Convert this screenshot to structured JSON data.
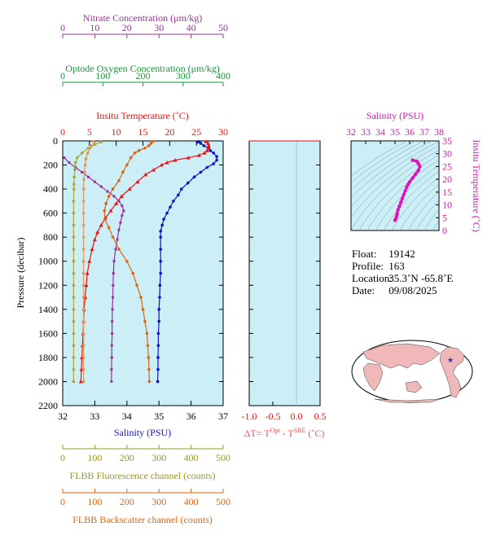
{
  "colors": {
    "nitrate": "#993399",
    "oxygen": "#119933",
    "temperature": "#ee1111",
    "salinity": "#1111cc",
    "fluorescence": "#aaaa33",
    "backscatter": "#dd6611",
    "panel_bg": "#cceef6",
    "ts_curve": "#dd11bb",
    "map_land": "#f0b8b8",
    "map_ocean": "#ffffff"
  },
  "labels": {
    "nitrate_axis": "Nitrate Concentration (μm/kg)",
    "oxygen_axis": "Optode Oxygen Concentration (μm/kg)",
    "temperature_axis": "Insitu Temperature (˚C)",
    "pressure_axis": "Pressure (decibar)",
    "salinity_axis": "Salinity (PSU)",
    "fluorescence_axis": "FLBB Fluorescence channel (counts)",
    "backscatter_axis": "FLBB Backscatter channel (counts)",
    "delta_t_axis": "ΔT= T",
    "delta_t_sup1": "Opt",
    "delta_t_mid": " - T",
    "delta_t_sup2": "SBE",
    "delta_t_unit": " (˚C)",
    "ts_salinity_axis": "Salinity (PSU)",
    "ts_temperature_axis": "Insitu Temperature (˚C)"
  },
  "info": {
    "float_label": "Float:",
    "float_value": "19142",
    "profile_label": "Profile:",
    "profile_value": "163",
    "location_label": "Location:",
    "location_value": "35.3˚N  -65.8˚E",
    "date_label": "Date:",
    "date_value": "09/08/2025"
  },
  "chart_data": [
    {
      "type": "line",
      "panel": "profiles",
      "y_axis": {
        "label": "Pressure (decibar)",
        "range": [
          2200,
          0
        ],
        "ticks": [
          0,
          200,
          400,
          600,
          800,
          1000,
          1200,
          1400,
          1600,
          1800,
          2000,
          2200
        ]
      },
      "x_axes": [
        {
          "name": "nitrate",
          "label": "Nitrate Concentration (μm/kg)",
          "range": [
            0,
            50
          ],
          "ticks": [
            0,
            10,
            20,
            30,
            40,
            50
          ]
        },
        {
          "name": "oxygen",
          "label": "Optode Oxygen Concentration (μm/kg)",
          "range": [
            0,
            400
          ],
          "ticks": [
            0,
            100,
            200,
            300,
            400
          ]
        },
        {
          "name": "temperature",
          "label": "Insitu Temperature (˚C)",
          "range": [
            0,
            30
          ],
          "ticks": [
            0,
            5,
            10,
            15,
            20,
            25,
            30
          ]
        },
        {
          "name": "salinity",
          "label": "Salinity (PSU)",
          "range": [
            32,
            37
          ],
          "ticks": [
            32,
            33,
            34,
            35,
            36,
            37
          ]
        },
        {
          "name": "fluorescence",
          "label": "FLBB Fluorescence channel (counts)",
          "range": [
            0,
            500
          ],
          "ticks": [
            0,
            100,
            200,
            300,
            400,
            500
          ]
        },
        {
          "name": "backscatter",
          "label": "FLBB Backscatter channel (counts)",
          "range": [
            0,
            500
          ],
          "ticks": [
            0,
            100,
            200,
            300,
            400,
            500
          ]
        }
      ],
      "series": [
        {
          "name": "salinity",
          "axis": "salinity",
          "points": [
            [
              36.25,
              5
            ],
            [
              36.2,
              10
            ],
            [
              36.3,
              20
            ],
            [
              36.4,
              40
            ],
            [
              36.55,
              60
            ],
            [
              36.6,
              80
            ],
            [
              36.7,
              100
            ],
            [
              36.8,
              130
            ],
            [
              36.8,
              160
            ],
            [
              36.7,
              190
            ],
            [
              36.5,
              220
            ],
            [
              36.3,
              260
            ],
            [
              36.1,
              300
            ],
            [
              35.9,
              350
            ],
            [
              35.7,
              400
            ],
            [
              35.6,
              450
            ],
            [
              35.45,
              500
            ],
            [
              35.35,
              550
            ],
            [
              35.25,
              600
            ],
            [
              35.15,
              650
            ],
            [
              35.1,
              700
            ],
            [
              35.05,
              750
            ],
            [
              35.05,
              800
            ],
            [
              35.05,
              900
            ],
            [
              35.05,
              1000
            ],
            [
              35.05,
              1100
            ],
            [
              35.03,
              1200
            ],
            [
              35.02,
              1300
            ],
            [
              35.0,
              1400
            ],
            [
              35.0,
              1500
            ],
            [
              34.98,
              1600
            ],
            [
              34.98,
              1700
            ],
            [
              34.97,
              1800
            ],
            [
              34.97,
              1900
            ],
            [
              34.96,
              2000
            ]
          ]
        },
        {
          "name": "temperature",
          "axis": "temperature",
          "points": [
            [
              26.8,
              5
            ],
            [
              27.2,
              20
            ],
            [
              27.3,
              40
            ],
            [
              27.2,
              60
            ],
            [
              27.0,
              80
            ],
            [
              26.5,
              100
            ],
            [
              25.5,
              120
            ],
            [
              23.5,
              140
            ],
            [
              21.0,
              160
            ],
            [
              19.5,
              180
            ],
            [
              18.5,
              200
            ],
            [
              17.0,
              240
            ],
            [
              15.5,
              280
            ],
            [
              14.0,
              340
            ],
            [
              12.5,
              400
            ],
            [
              11.0,
              460
            ],
            [
              10.0,
              520
            ],
            [
              9.0,
              580
            ],
            [
              8.0,
              640
            ],
            [
              7.2,
              700
            ],
            [
              6.5,
              760
            ],
            [
              6.0,
              820
            ],
            [
              5.5,
              900
            ],
            [
              5.0,
              1000
            ],
            [
              4.6,
              1100
            ],
            [
              4.4,
              1200
            ],
            [
              4.2,
              1300
            ],
            [
              4.0,
              1400
            ],
            [
              3.9,
              1500
            ],
            [
              3.8,
              1600
            ],
            [
              3.7,
              1700
            ],
            [
              3.6,
              1800
            ],
            [
              3.5,
              1900
            ],
            [
              3.4,
              2000
            ]
          ]
        },
        {
          "name": "nitrate",
          "axis": "nitrate",
          "points": [
            [
              0.5,
              140
            ],
            [
              2,
              180
            ],
            [
              4,
              220
            ],
            [
              6,
              260
            ],
            [
              8,
              300
            ],
            [
              10,
              340
            ],
            [
              12,
              380
            ],
            [
              14,
              420
            ],
            [
              16,
              460
            ],
            [
              17.5,
              500
            ],
            [
              18.5,
              540
            ],
            [
              19,
              580
            ],
            [
              18.5,
              620
            ],
            [
              18,
              680
            ],
            [
              17.5,
              740
            ],
            [
              17,
              820
            ],
            [
              16.5,
              900
            ],
            [
              16,
              1000
            ],
            [
              15.8,
              1100
            ],
            [
              15.7,
              1200
            ],
            [
              15.6,
              1300
            ],
            [
              15.5,
              1400
            ],
            [
              15.4,
              1500
            ],
            [
              15.4,
              1600
            ],
            [
              15.3,
              1700
            ],
            [
              15.3,
              1800
            ],
            [
              15.2,
              1900
            ],
            [
              15.2,
              2000
            ]
          ]
        },
        {
          "name": "oxygen",
          "axis": "oxygen",
          "points": [
            [
              225,
              5
            ],
            [
              220,
              20
            ],
            [
              215,
              40
            ],
            [
              205,
              60
            ],
            [
              190,
              80
            ],
            [
              180,
              100
            ],
            [
              170,
              140
            ],
            [
              160,
              200
            ],
            [
              150,
              260
            ],
            [
              140,
              330
            ],
            [
              125,
              400
            ],
            [
              115,
              460
            ],
            [
              108,
              520
            ],
            [
              104,
              580
            ],
            [
              105,
              650
            ],
            [
              115,
              720
            ],
            [
              125,
              800
            ],
            [
              140,
              900
            ],
            [
              160,
              1000
            ],
            [
              175,
              1100
            ],
            [
              185,
              1200
            ],
            [
              195,
              1300
            ],
            [
              200,
              1400
            ],
            [
              205,
              1500
            ],
            [
              210,
              1600
            ],
            [
              212,
              1700
            ],
            [
              214,
              1800
            ],
            [
              215,
              1900
            ],
            [
              216,
              2000
            ]
          ]
        },
        {
          "name": "fluorescence",
          "axis": "fluorescence",
          "points": [
            [
              120,
              10
            ],
            [
              100,
              30
            ],
            [
              80,
              60
            ],
            [
              60,
              100
            ],
            [
              45,
              140
            ],
            [
              40,
              180
            ],
            [
              38,
              240
            ],
            [
              36,
              300
            ],
            [
              35,
              360
            ],
            [
              35,
              400
            ],
            [
              34,
              500
            ],
            [
              34,
              600
            ],
            [
              34,
              700
            ],
            [
              34,
              800
            ],
            [
              34,
              900
            ],
            [
              34,
              1000
            ],
            [
              34,
              1100
            ],
            [
              34,
              1200
            ],
            [
              34,
              1300
            ],
            [
              34,
              1400
            ],
            [
              34,
              1500
            ],
            [
              34,
              1600
            ],
            [
              34,
              1700
            ],
            [
              34,
              1800
            ],
            [
              34,
              1900
            ],
            [
              34,
              2000
            ]
          ]
        },
        {
          "name": "backscatter",
          "axis": "backscatter",
          "points": [
            [
              95,
              5
            ],
            [
              100,
              20
            ],
            [
              90,
              40
            ],
            [
              85,
              60
            ],
            [
              78,
              100
            ],
            [
              72,
              150
            ],
            [
              70,
              200
            ],
            [
              68,
              260
            ],
            [
              66,
              320
            ],
            [
              65,
              400
            ],
            [
              65,
              500
            ],
            [
              65,
              600
            ],
            [
              65,
              700
            ],
            [
              65,
              800
            ],
            [
              65,
              900
            ],
            [
              65,
              1000
            ],
            [
              65,
              1100
            ],
            [
              65,
              1200
            ],
            [
              65,
              1300
            ],
            [
              65,
              1400
            ],
            [
              65,
              1500
            ],
            [
              65,
              1600
            ],
            [
              65,
              1700
            ],
            [
              65,
              1800
            ],
            [
              65,
              1900
            ],
            [
              65,
              2000
            ]
          ]
        }
      ]
    },
    {
      "type": "line",
      "panel": "delta_t",
      "x_axis": {
        "range": [
          -1.0,
          0.5
        ],
        "ticks": [
          -1.0,
          -0.5,
          0.0,
          0.5
        ]
      },
      "series": []
    },
    {
      "type": "scatter",
      "panel": "ts_diagram",
      "x_axis": {
        "label": "Salinity (PSU)",
        "range": [
          32,
          38
        ],
        "ticks": [
          32,
          33,
          34,
          35,
          36,
          37,
          38
        ]
      },
      "y_axis": {
        "label": "Insitu Temperature (˚C)",
        "range": [
          0,
          35
        ],
        "ticks": [
          0,
          5,
          10,
          15,
          20,
          25,
          30,
          35
        ]
      },
      "series": [
        {
          "name": "ts_profile",
          "points": [
            [
              36.2,
              27.5
            ],
            [
              36.5,
              27
            ],
            [
              36.6,
              26
            ],
            [
              36.7,
              25
            ],
            [
              36.6,
              23.5
            ],
            [
              36.4,
              22
            ],
            [
              36.2,
              20.5
            ],
            [
              36.0,
              19
            ],
            [
              35.9,
              18
            ],
            [
              35.8,
              17
            ],
            [
              35.7,
              15.5
            ],
            [
              35.6,
              14
            ],
            [
              35.5,
              12.5
            ],
            [
              35.4,
              11
            ],
            [
              35.3,
              9.5
            ],
            [
              35.2,
              8
            ],
            [
              35.15,
              6.5
            ],
            [
              35.1,
              5.5
            ],
            [
              35.05,
              4.5
            ],
            [
              35.0,
              4
            ]
          ]
        }
      ]
    }
  ]
}
